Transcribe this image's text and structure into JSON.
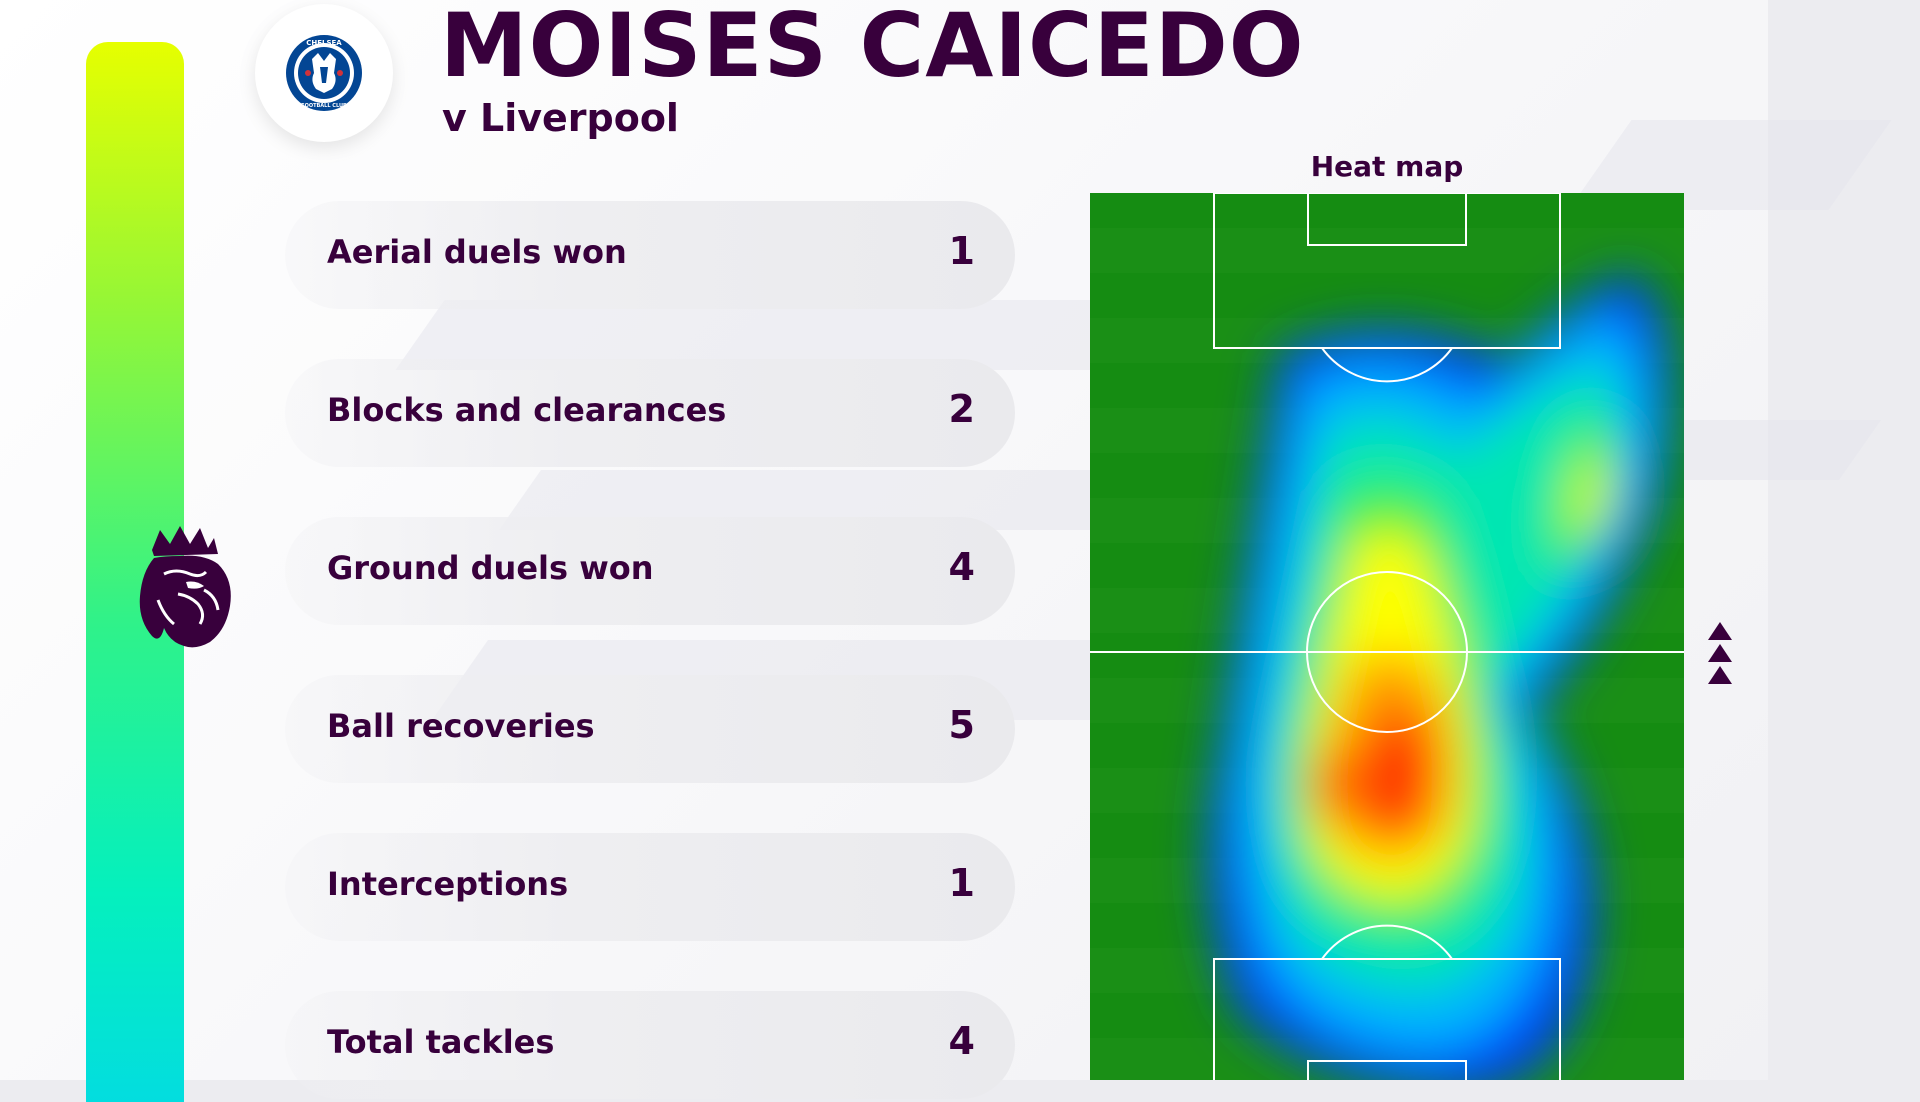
{
  "player": {
    "name": "MOISES CAICEDO",
    "opponent": "v Liverpool"
  },
  "club_badge": {
    "icon": "chelsea-crest-icon",
    "motto": "CHELSEA FOOTBALL CLUB"
  },
  "league_logo": {
    "icon": "premier-league-lion-icon"
  },
  "heatmap": {
    "title": "Heat map",
    "attack_direction_icon": "triple-up-arrow-icon"
  },
  "stats": [
    {
      "label": "Aerial duels won",
      "value": "1"
    },
    {
      "label": "Blocks and clearances",
      "value": "2"
    },
    {
      "label": "Ground duels won",
      "value": "4"
    },
    {
      "label": "Ball recoveries",
      "value": "5"
    },
    {
      "label": "Interceptions",
      "value": "1"
    },
    {
      "label": "Total tackles",
      "value": "4"
    }
  ],
  "colors": {
    "primary": "#38003c",
    "accent_top": "#e6ff00",
    "accent_bottom": "#03dddf",
    "pitch_green": "#158c12",
    "club_blue": "#034694"
  }
}
